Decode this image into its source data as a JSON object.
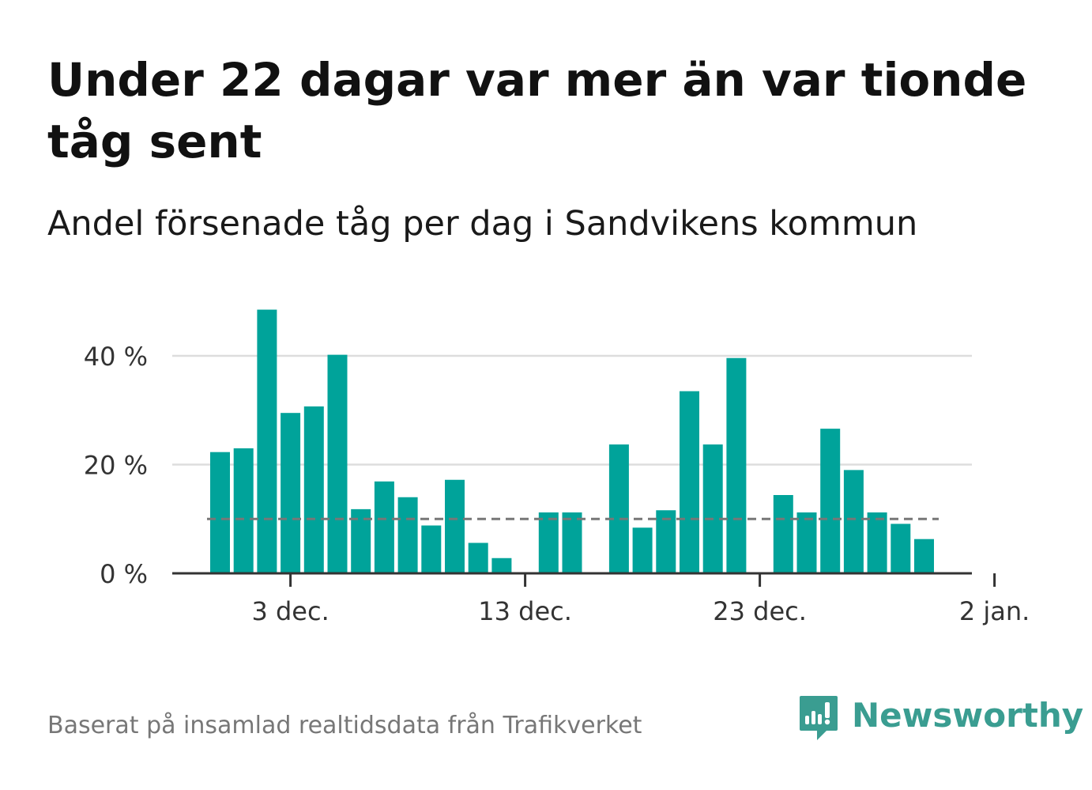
{
  "title": "Under 22 dagar var mer än var tionde tåg sent",
  "subtitle": "Andel försenade tåg per dag i Sandvikens kommun",
  "footer": "Baserat på insamlad realtidsdata från Trafikverket",
  "brand": {
    "name": "Newsworthy",
    "icon": "newsworthy-logo-icon",
    "color": "#3a9d91"
  },
  "colors": {
    "bar": "#00a39a",
    "reference_line": "#777777",
    "grid": "#dddddd",
    "axis": "#333333"
  },
  "chart_data": {
    "type": "bar",
    "x": [
      "2024-11-30",
      "2024-12-01",
      "2024-12-02",
      "2024-12-03",
      "2024-12-04",
      "2024-12-05",
      "2024-12-06",
      "2024-12-07",
      "2024-12-08",
      "2024-12-09",
      "2024-12-10",
      "2024-12-11",
      "2024-12-12",
      "2024-12-13",
      "2024-12-14",
      "2024-12-15",
      "2024-12-16",
      "2024-12-17",
      "2024-12-18",
      "2024-12-19",
      "2024-12-20",
      "2024-12-21",
      "2024-12-22",
      "2024-12-23",
      "2024-12-24",
      "2024-12-25",
      "2024-12-26",
      "2024-12-27",
      "2024-12-28",
      "2024-12-29",
      "2024-12-30",
      "2024-12-31"
    ],
    "values": [
      22.3,
      23.0,
      48.5,
      29.5,
      30.7,
      40.2,
      11.8,
      16.9,
      14.0,
      8.8,
      17.2,
      5.6,
      2.8,
      null,
      11.2,
      11.2,
      null,
      23.7,
      8.4,
      11.6,
      33.5,
      23.7,
      39.6,
      null,
      14.4,
      11.2,
      26.6,
      19.0,
      11.2,
      9.1,
      6.3,
      null
    ],
    "reference_line": 10,
    "ylim": [
      0,
      52
    ],
    "yticks": [
      0,
      20,
      40
    ],
    "ytick_labels": [
      "0 %",
      "20 %",
      "40 %"
    ],
    "xtick_positions": [
      "2024-12-03",
      "2024-12-13",
      "2024-12-23",
      "2025-01-02"
    ],
    "xtick_labels": [
      "3 dec.",
      "13 dec.",
      "23 dec.",
      "2 jan."
    ],
    "xlabel": "",
    "ylabel": "",
    "grid": true
  }
}
